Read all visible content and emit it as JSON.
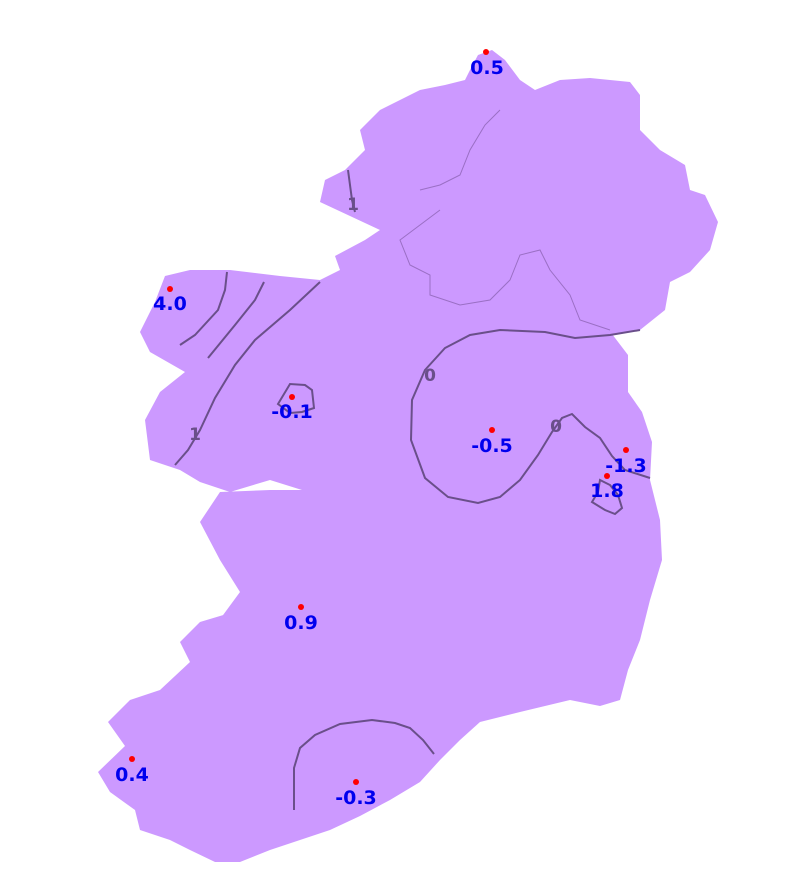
{
  "map": {
    "land_color": "#cc99ff",
    "contour_color": "#6a4f8a",
    "station_marker_color": "#ff0000",
    "value_label_color": "#0000ee",
    "stations": [
      {
        "value": "0.5"
      },
      {
        "value": "4.0"
      },
      {
        "value": "-0.1"
      },
      {
        "value": "-0.5"
      },
      {
        "value": "-1.3"
      },
      {
        "value": "1.8"
      },
      {
        "value": "0.9"
      },
      {
        "value": "0.4"
      },
      {
        "value": "-0.3"
      }
    ],
    "contour_labels": [
      "1",
      "1",
      "0",
      "0"
    ]
  }
}
